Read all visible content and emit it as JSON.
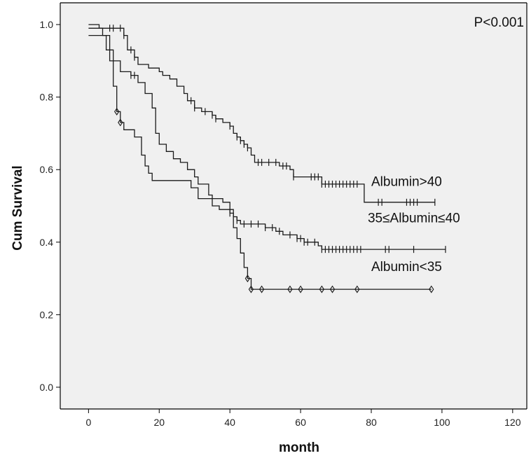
{
  "chart_data": {
    "type": "line",
    "title": "",
    "xlabel": "month",
    "ylabel": "Cum Survival",
    "xlim": [
      -8,
      124
    ],
    "ylim": [
      -0.06,
      1.06
    ],
    "xticks": [
      0,
      20,
      40,
      60,
      80,
      100,
      120
    ],
    "yticks": [
      0.0,
      0.2,
      0.4,
      0.6,
      0.8,
      1.0
    ],
    "xtick_labels": [
      "0",
      "20",
      "40",
      "60",
      "80",
      "100",
      "120"
    ],
    "ytick_labels": [
      "0.0",
      "0.2",
      "0.4",
      "0.6",
      "0.8",
      "1.0"
    ],
    "annotation": "P<0.001",
    "grid": false,
    "colors": {
      "panel": "#f0f0f0",
      "line": "#1a1a1a",
      "frame": "#000000"
    },
    "series": [
      {
        "label_text": "Albumin>40",
        "label_pos": {
          "x": 80,
          "y": 0.555
        },
        "steps": [
          [
            0,
            1.0
          ],
          [
            3,
            0.99
          ],
          [
            10,
            0.97
          ],
          [
            11,
            0.93
          ],
          [
            13,
            0.91
          ],
          [
            14,
            0.89
          ],
          [
            17,
            0.88
          ],
          [
            20,
            0.87
          ],
          [
            21,
            0.86
          ],
          [
            23,
            0.85
          ],
          [
            25,
            0.83
          ],
          [
            27,
            0.81
          ],
          [
            28,
            0.79
          ],
          [
            30,
            0.77
          ],
          [
            32,
            0.76
          ],
          [
            35,
            0.75
          ],
          [
            36,
            0.74
          ],
          [
            38,
            0.73
          ],
          [
            40,
            0.72
          ],
          [
            41,
            0.7
          ],
          [
            42,
            0.69
          ],
          [
            43,
            0.68
          ],
          [
            44,
            0.67
          ],
          [
            45,
            0.66
          ],
          [
            46,
            0.64
          ],
          [
            47,
            0.62
          ],
          [
            54,
            0.61
          ],
          [
            57,
            0.6
          ],
          [
            58,
            0.58
          ],
          [
            62,
            0.58
          ],
          [
            66,
            0.56
          ],
          [
            78,
            0.51
          ],
          [
            98,
            0.51
          ]
        ],
        "censor_x": [
          6,
          7,
          9,
          10,
          12,
          13,
          29,
          30,
          33,
          35,
          36,
          40,
          42,
          43,
          44,
          45,
          48,
          49,
          51,
          53,
          55,
          56,
          58,
          63,
          64,
          65,
          66,
          67,
          68,
          69,
          70,
          71,
          72,
          73,
          74,
          75,
          76,
          82,
          83,
          90,
          91,
          92,
          93,
          98
        ]
      },
      {
        "label_text": "35≤Albumin≤40",
        "label_pos": {
          "x": 79,
          "y": 0.455
        },
        "steps": [
          [
            0,
            0.99
          ],
          [
            4,
            0.97
          ],
          [
            5,
            0.93
          ],
          [
            7,
            0.9
          ],
          [
            9,
            0.87
          ],
          [
            12,
            0.86
          ],
          [
            14,
            0.84
          ],
          [
            16,
            0.81
          ],
          [
            18,
            0.77
          ],
          [
            19,
            0.7
          ],
          [
            20,
            0.67
          ],
          [
            22,
            0.65
          ],
          [
            24,
            0.63
          ],
          [
            26,
            0.62
          ],
          [
            28,
            0.6
          ],
          [
            30,
            0.58
          ],
          [
            31,
            0.56
          ],
          [
            34,
            0.53
          ],
          [
            35,
            0.5
          ],
          [
            37,
            0.49
          ],
          [
            40,
            0.48
          ],
          [
            41,
            0.47
          ],
          [
            42,
            0.46
          ],
          [
            43,
            0.45
          ],
          [
            50,
            0.44
          ],
          [
            53,
            0.43
          ],
          [
            55,
            0.42
          ],
          [
            59,
            0.41
          ],
          [
            61,
            0.4
          ],
          [
            65,
            0.39
          ],
          [
            66,
            0.38
          ],
          [
            101,
            0.38
          ]
        ],
        "censor_x": [
          12,
          13,
          40,
          42,
          44,
          46,
          48,
          50,
          52,
          54,
          57,
          59,
          60,
          61,
          62,
          64,
          66,
          67,
          68,
          69,
          70,
          71,
          72,
          73,
          74,
          75,
          76,
          77,
          84,
          85,
          92,
          101
        ]
      },
      {
        "label_text": "Albumin<35",
        "label_pos": {
          "x": 80,
          "y": 0.32
        },
        "steps": [
          [
            0,
            0.97
          ],
          [
            6,
            0.9
          ],
          [
            7,
            0.83
          ],
          [
            8,
            0.76
          ],
          [
            9,
            0.73
          ],
          [
            10,
            0.71
          ],
          [
            13,
            0.69
          ],
          [
            15,
            0.64
          ],
          [
            16,
            0.61
          ],
          [
            17,
            0.59
          ],
          [
            18,
            0.57
          ],
          [
            29,
            0.55
          ],
          [
            31,
            0.52
          ],
          [
            38,
            0.51
          ],
          [
            40,
            0.49
          ],
          [
            41,
            0.44
          ],
          [
            42,
            0.41
          ],
          [
            43,
            0.37
          ],
          [
            44,
            0.33
          ],
          [
            45,
            0.3
          ],
          [
            46,
            0.27
          ],
          [
            97,
            0.27
          ]
        ],
        "censor_x": [
          8,
          9,
          45,
          46,
          49,
          57,
          60,
          66,
          69,
          76,
          97
        ]
      }
    ]
  }
}
